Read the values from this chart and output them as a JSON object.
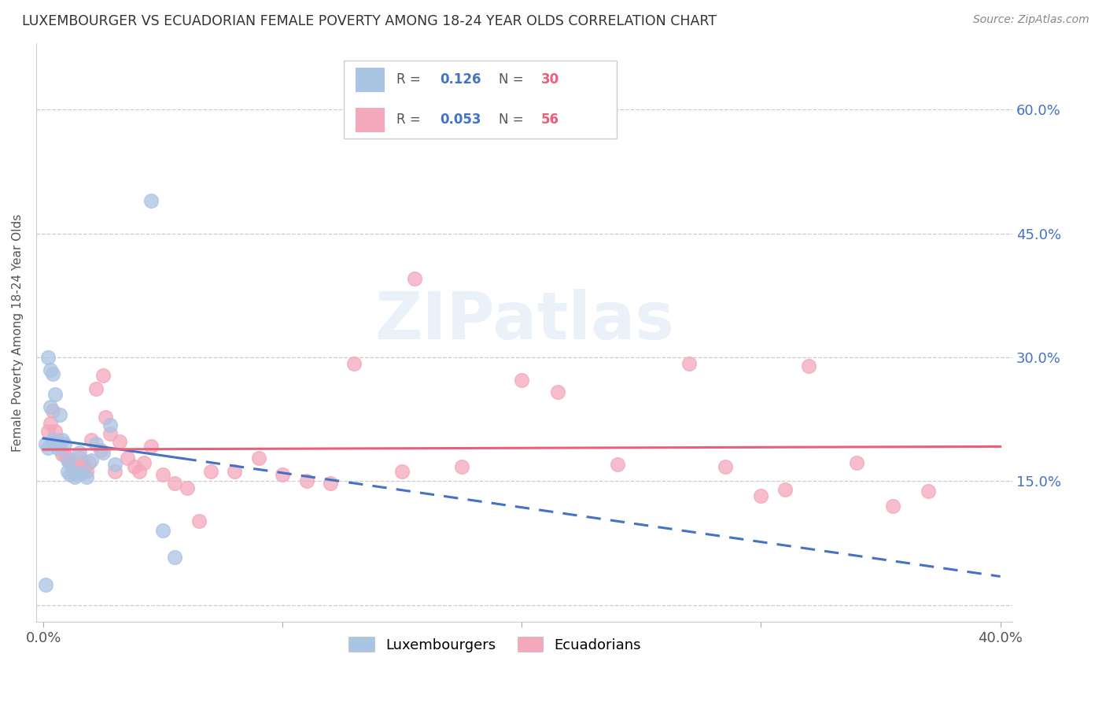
{
  "title": "LUXEMBOURGER VS ECUADORIAN FEMALE POVERTY AMONG 18-24 YEAR OLDS CORRELATION CHART",
  "source": "Source: ZipAtlas.com",
  "ylabel": "Female Poverty Among 18-24 Year Olds",
  "xlim": [
    -0.003,
    0.405
  ],
  "ylim": [
    -0.02,
    0.68
  ],
  "ytick_vals": [
    0.0,
    0.15,
    0.3,
    0.45,
    0.6
  ],
  "xtick_vals": [
    0.0,
    0.1,
    0.2,
    0.3,
    0.4
  ],
  "luxembourger_color": "#aac4e4",
  "ecuadorian_color": "#f4a8bc",
  "trendline_lux_color": "#4472c4",
  "trendline_ecu_color": "#e8607a",
  "watermark_text": "ZIPatlas",
  "lux_x": [
    0.001,
    0.001,
    0.002,
    0.002,
    0.003,
    0.003,
    0.004,
    0.004,
    0.005,
    0.005,
    0.006,
    0.007,
    0.008,
    0.009,
    0.01,
    0.01,
    0.011,
    0.012,
    0.013,
    0.015,
    0.016,
    0.018,
    0.02,
    0.022,
    0.025,
    0.028,
    0.03,
    0.045,
    0.05,
    0.055
  ],
  "lux_y": [
    0.025,
    0.195,
    0.3,
    0.19,
    0.285,
    0.24,
    0.2,
    0.28,
    0.255,
    0.195,
    0.19,
    0.23,
    0.2,
    0.195,
    0.175,
    0.162,
    0.158,
    0.162,
    0.155,
    0.185,
    0.16,
    0.155,
    0.175,
    0.195,
    0.185,
    0.218,
    0.17,
    0.49,
    0.09,
    0.058
  ],
  "ecu_x": [
    0.002,
    0.003,
    0.004,
    0.005,
    0.006,
    0.007,
    0.008,
    0.009,
    0.01,
    0.011,
    0.012,
    0.013,
    0.014,
    0.015,
    0.016,
    0.017,
    0.018,
    0.019,
    0.02,
    0.022,
    0.024,
    0.025,
    0.026,
    0.028,
    0.03,
    0.032,
    0.035,
    0.038,
    0.04,
    0.042,
    0.045,
    0.05,
    0.055,
    0.06,
    0.065,
    0.07,
    0.08,
    0.09,
    0.1,
    0.11,
    0.12,
    0.13,
    0.15,
    0.155,
    0.175,
    0.2,
    0.215,
    0.24,
    0.27,
    0.285,
    0.3,
    0.31,
    0.32,
    0.34,
    0.355,
    0.37
  ],
  "ecu_y": [
    0.21,
    0.22,
    0.235,
    0.21,
    0.2,
    0.195,
    0.183,
    0.183,
    0.178,
    0.172,
    0.168,
    0.162,
    0.158,
    0.178,
    0.172,
    0.168,
    0.162,
    0.172,
    0.2,
    0.262,
    0.188,
    0.278,
    0.228,
    0.208,
    0.162,
    0.198,
    0.178,
    0.168,
    0.162,
    0.172,
    0.192,
    0.158,
    0.148,
    0.142,
    0.102,
    0.162,
    0.162,
    0.178,
    0.158,
    0.15,
    0.148,
    0.292,
    0.162,
    0.395,
    0.168,
    0.272,
    0.258,
    0.17,
    0.292,
    0.168,
    0.132,
    0.14,
    0.29,
    0.172,
    0.12,
    0.138
  ]
}
